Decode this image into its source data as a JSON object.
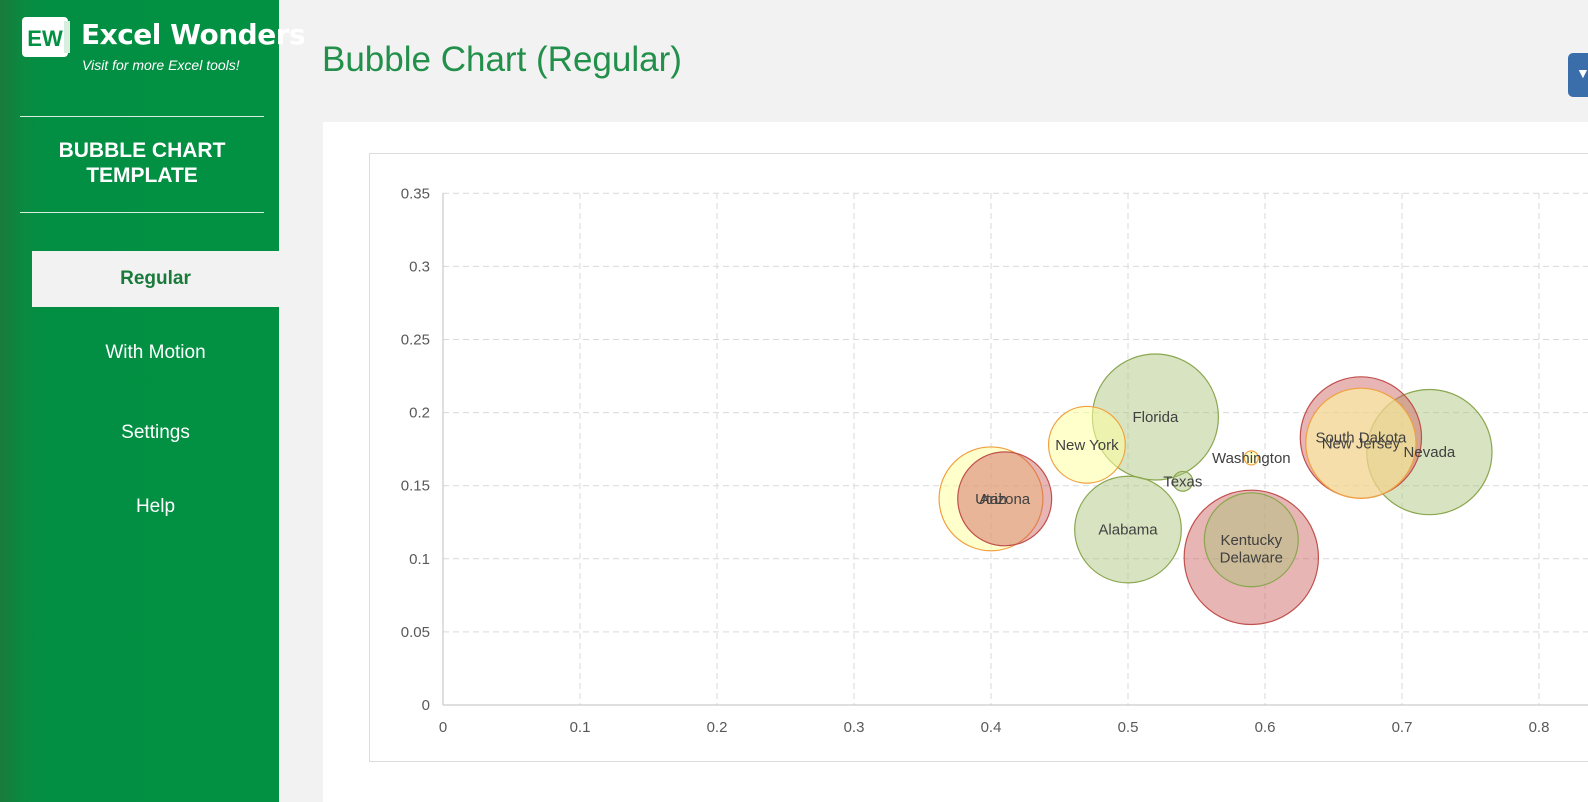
{
  "brand": {
    "logo_text": "EW",
    "name": "Excel Wonders",
    "tagline": "Visit for more Excel tools!"
  },
  "sidebar": {
    "template_title_line1": "BUBBLE CHART",
    "template_title_line2": "TEMPLATE",
    "items": [
      {
        "label": "Regular",
        "active": true
      },
      {
        "label": "With Motion",
        "active": false
      },
      {
        "label": "Settings",
        "active": false
      },
      {
        "label": "Help",
        "active": false
      }
    ]
  },
  "page": {
    "title": "Bubble Chart (Regular)",
    "top_right_button_icon": "chevron-down-icon"
  },
  "colors": {
    "green_fill": "rgba(169,196,118,0.45)",
    "green_stroke": "#8aa64f",
    "red_fill": "rgba(205,92,92,0.45)",
    "red_stroke": "#c0504d",
    "yellow_fill": "rgba(255,255,160,0.55)",
    "yellow_stroke": "#f0a040"
  },
  "chart_data": {
    "type": "scatter",
    "subtype": "bubble",
    "title": "",
    "xlabel": "",
    "ylabel": "",
    "xlim": [
      0,
      0.85
    ],
    "ylim": [
      0,
      0.35
    ],
    "x_ticks": [
      "0",
      "0.1",
      "0.2",
      "0.3",
      "0.4",
      "0.5",
      "0.6",
      "0.7",
      "0.8"
    ],
    "y_ticks": [
      "0",
      "0.05",
      "0.1",
      "0.15",
      "0.2",
      "0.25",
      "0.3",
      "0.35"
    ],
    "grid": true,
    "series": [
      {
        "name": "Utah",
        "x": 0.4,
        "y": 0.141,
        "size": 0.55,
        "color": "yellow"
      },
      {
        "name": "Arizona",
        "x": 0.41,
        "y": 0.141,
        "size": 0.45,
        "color": "red"
      },
      {
        "name": "New York",
        "x": 0.47,
        "y": 0.178,
        "size": 0.3,
        "color": "yellow"
      },
      {
        "name": "Florida",
        "x": 0.52,
        "y": 0.197,
        "size": 0.81,
        "color": "green"
      },
      {
        "name": "Alabama",
        "x": 0.5,
        "y": 0.12,
        "size": 0.58,
        "color": "green"
      },
      {
        "name": "Texas",
        "x": 0.54,
        "y": 0.153,
        "size": 0.02,
        "color": "green"
      },
      {
        "name": "Washington",
        "x": 0.59,
        "y": 0.169,
        "size": 0.01,
        "color": "yellow"
      },
      {
        "name": "Delaware",
        "x": 0.59,
        "y": 0.101,
        "size": 0.92,
        "color": "red"
      },
      {
        "name": "Kentucky",
        "x": 0.59,
        "y": 0.113,
        "size": 0.45,
        "color": "green"
      },
      {
        "name": "New Jersey",
        "x": 0.67,
        "y": 0.179,
        "size": 0.62,
        "color": "yellow"
      },
      {
        "name": "South Dakota",
        "x": 0.67,
        "y": 0.183,
        "size": 0.75,
        "color": "red"
      },
      {
        "name": "Nevada",
        "x": 0.72,
        "y": 0.173,
        "size": 0.8,
        "color": "green"
      }
    ]
  }
}
